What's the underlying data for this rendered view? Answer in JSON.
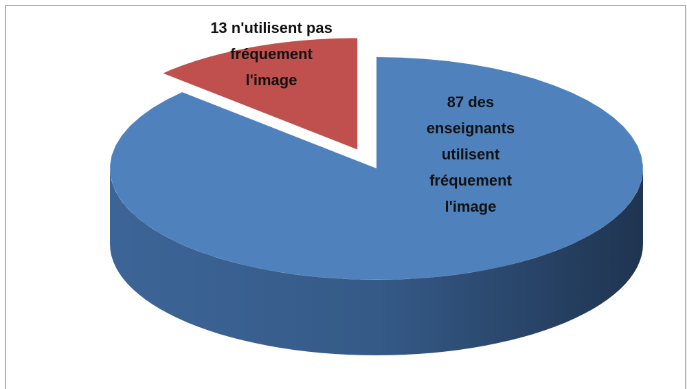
{
  "chart_data": {
    "type": "pie3d",
    "values": [
      87,
      13
    ],
    "value_labels": [
      "87  des enseignants utilisent fréquement l'image",
      "13 n'utilisent pas fréquement l'image"
    ],
    "colors": [
      "#4f81bd",
      "#c0504d"
    ],
    "exploded": [
      false,
      true
    ]
  }
}
